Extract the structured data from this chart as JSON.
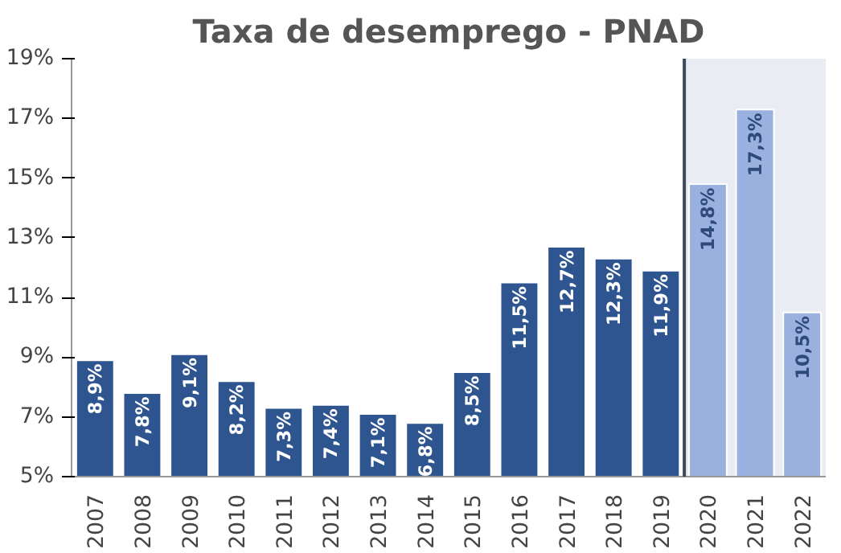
{
  "chart_data": {
    "type": "bar",
    "title": "Taxa de desemprego - PNAD",
    "categories": [
      "2007",
      "2008",
      "2009",
      "2010",
      "2011",
      "2012",
      "2013",
      "2014",
      "2015",
      "2016",
      "2017",
      "2018",
      "2019",
      "2020",
      "2021",
      "2022"
    ],
    "values": [
      8.9,
      7.8,
      9.1,
      8.2,
      7.3,
      7.4,
      7.1,
      6.8,
      8.5,
      11.5,
      12.7,
      12.3,
      11.9,
      14.8,
      17.3,
      10.5
    ],
    "value_labels": [
      "8,9%",
      "7,8%",
      "9,1%",
      "8,2%",
      "7,3%",
      "7,4%",
      "7,1%",
      "6,8%",
      "8,5%",
      "11,5%",
      "12,7%",
      "12,3%",
      "11,9%",
      "14,8%",
      "17,3%",
      "10,5%"
    ],
    "colors": [
      "#2e5590",
      "#2e5590",
      "#2e5590",
      "#2e5590",
      "#2e5590",
      "#2e5590",
      "#2e5590",
      "#2e5590",
      "#2e5590",
      "#2e5590",
      "#2e5590",
      "#2e5590",
      "#2e5590",
      "#9ab1e0",
      "#9ab1e0",
      "#9ab1e0"
    ],
    "ylim": [
      5,
      19
    ],
    "yticks": [
      {
        "value": 5,
        "label": "5%"
      },
      {
        "value": 7,
        "label": "7%"
      },
      {
        "value": 9,
        "label": "9%"
      },
      {
        "value": 11,
        "label": "11%"
      },
      {
        "value": 13,
        "label": "13%"
      },
      {
        "value": 15,
        "label": "15%"
      },
      {
        "value": 17,
        "label": "17%"
      },
      {
        "value": 19,
        "label": "19%"
      }
    ],
    "bands": [
      {
        "axis": "x",
        "from": "2020",
        "to": "2022",
        "color": "#e9edf3"
      }
    ],
    "grid": false
  }
}
